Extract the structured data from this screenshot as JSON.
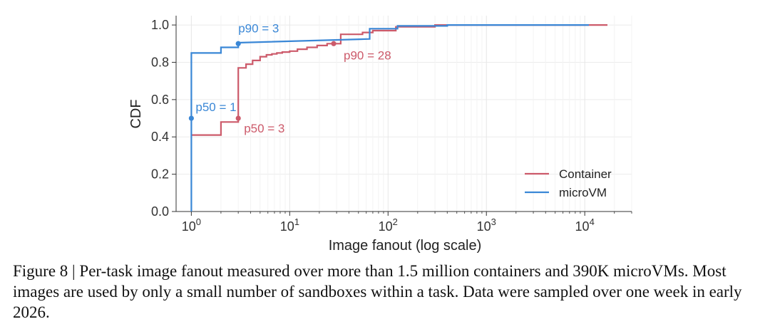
{
  "chart_data": {
    "type": "line",
    "title": "",
    "xlabel": "Image fanout (log scale)",
    "ylabel": "CDF",
    "xscale": "log",
    "xlim": [
      0.7,
      30000
    ],
    "ylim": [
      0.0,
      1.05
    ],
    "grid": true,
    "legend_position": "bottom-right",
    "x_ticks": [
      {
        "value": 1,
        "base": "10",
        "exp": "0"
      },
      {
        "value": 10,
        "base": "10",
        "exp": "1"
      },
      {
        "value": 100,
        "base": "10",
        "exp": "2"
      },
      {
        "value": 1000,
        "base": "10",
        "exp": "3"
      },
      {
        "value": 10000,
        "base": "10",
        "exp": "4"
      }
    ],
    "y_ticks": [
      "0.0",
      "0.2",
      "0.4",
      "0.6",
      "0.8",
      "1.0"
    ],
    "series": [
      {
        "name": "Container",
        "color": "#cc5a6a",
        "x": [
          1,
          2,
          2,
          3,
          3,
          3.6,
          3.6,
          4.2,
          4.2,
          5,
          5,
          5.8,
          5.8,
          6.6,
          6.6,
          7.4,
          7.4,
          8.4,
          8.4,
          10,
          10,
          12,
          12,
          15,
          15,
          19,
          19,
          24,
          24,
          33,
          33,
          55,
          55,
          70,
          70,
          85,
          85,
          120,
          120,
          300,
          300,
          17000
        ],
        "y": [
          0.41,
          0.41,
          0.48,
          0.48,
          0.77,
          0.77,
          0.79,
          0.79,
          0.81,
          0.81,
          0.83,
          0.83,
          0.84,
          0.84,
          0.845,
          0.845,
          0.85,
          0.85,
          0.855,
          0.855,
          0.86,
          0.86,
          0.87,
          0.87,
          0.88,
          0.88,
          0.89,
          0.89,
          0.9,
          0.9,
          0.95,
          0.95,
          0.96,
          0.96,
          0.97,
          0.97,
          0.97,
          0.97,
          0.99,
          0.99,
          1.0,
          1.0
        ]
      },
      {
        "name": "microVM",
        "color": "#3a87d6",
        "x": [
          1,
          1,
          2,
          2,
          3,
          3,
          65,
          65,
          125,
          125,
          400,
          400,
          11000
        ],
        "y": [
          0.0,
          0.85,
          0.85,
          0.88,
          0.88,
          0.905,
          0.925,
          0.98,
          0.98,
          0.995,
          0.995,
          1.0,
          1.0
        ]
      }
    ],
    "annotations": [
      {
        "text": "p90 = 3",
        "series": "microVM",
        "x": 3,
        "y": 0.9
      },
      {
        "text": "p50 = 1",
        "series": "microVM",
        "x": 1,
        "y": 0.5
      },
      {
        "text": "p90 = 28",
        "series": "Container",
        "x": 28,
        "y": 0.9
      },
      {
        "text": "p50 = 3",
        "series": "Container",
        "x": 3,
        "y": 0.5
      }
    ]
  },
  "caption": "Figure 8 | Per-task image fanout measured over more than 1.5 million containers and 390K microVMs. Most images are used by only a small number of sandboxes within a task. Data were sampled over one week in early 2026."
}
